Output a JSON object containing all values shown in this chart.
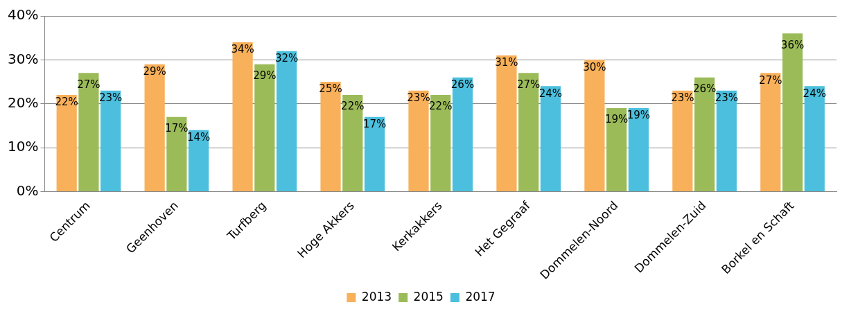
{
  "chart_data": {
    "type": "bar",
    "categories": [
      "Centrum",
      "Geenhoven",
      "Turfberg",
      "Hoge Akkers",
      "Kerkakkers",
      "Het Gegraaf",
      "Dommelen-Noord",
      "Dommelen-Zuid",
      "Borkel en Schaft"
    ],
    "series": [
      {
        "name": "2013",
        "color": "#f9b05a",
        "values": [
          22,
          29,
          34,
          25,
          23,
          31,
          30,
          23,
          27
        ],
        "value_labels": [
          "22%",
          "29%",
          "34%",
          "25%",
          "23%",
          "31%",
          "30%",
          "23%",
          "27%"
        ]
      },
      {
        "name": "2015",
        "color": "#9bbb59",
        "values": [
          27,
          17,
          29,
          22,
          22,
          27,
          19,
          26,
          36
        ],
        "value_labels": [
          "27%",
          "17%",
          "29%",
          "22%",
          "22%",
          "27%",
          "19%",
          "26%",
          "36%"
        ]
      },
      {
        "name": "2017",
        "color": "#4bbfdd",
        "values": [
          23,
          14,
          32,
          17,
          26,
          24,
          19,
          23,
          24
        ],
        "value_labels": [
          "23%",
          "14%",
          "32%",
          "17%",
          "26%",
          "24%",
          "19%",
          "23%",
          "24%"
        ]
      }
    ],
    "ylim": [
      0,
      40
    ],
    "yticks": [
      {
        "value": 0,
        "label": "0%"
      },
      {
        "value": 10,
        "label": "10%"
      },
      {
        "value": 20,
        "label": "20%"
      },
      {
        "value": 30,
        "label": "30%"
      },
      {
        "value": 40,
        "label": "40%"
      }
    ],
    "grid": "y",
    "legend": "bottom"
  }
}
